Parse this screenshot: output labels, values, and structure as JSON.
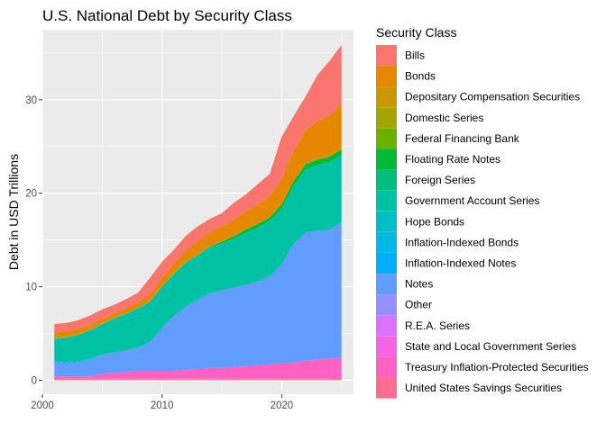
{
  "chart_data": {
    "type": "area",
    "stacked": true,
    "title": "U.S. National Debt by Security Class",
    "xlabel": "",
    "ylabel": "Debt in USD Trillions",
    "xlim": [
      2000,
      2026
    ],
    "ylim": [
      -1.5,
      37.5
    ],
    "x_ticks": [
      2000,
      2010,
      2020
    ],
    "y_ticks": [
      0,
      10,
      20,
      30
    ],
    "grid": true,
    "legend_position": "right",
    "legend_title": "Security Class",
    "x": [
      2001,
      2002,
      2003,
      2004,
      2005,
      2006,
      2007,
      2008,
      2009,
      2010,
      2011,
      2012,
      2013,
      2014,
      2015,
      2016,
      2017,
      2018,
      2019,
      2020,
      2021,
      2022,
      2023,
      2024,
      2025
    ],
    "series": [
      {
        "name": "Bills",
        "color": "#F8766D",
        "values": [
          0.9,
          0.9,
          0.9,
          1.0,
          1.0,
          0.9,
          1.0,
          1.0,
          1.8,
          1.7,
          1.5,
          1.6,
          1.6,
          1.4,
          1.4,
          1.8,
          1.8,
          2.2,
          2.4,
          4.5,
          3.7,
          3.6,
          5.0,
          5.8,
          6.3
        ]
      },
      {
        "name": "Bonds",
        "color": "#E58700",
        "values": [
          0.6,
          0.6,
          0.6,
          0.5,
          0.5,
          0.5,
          0.5,
          0.6,
          0.7,
          0.9,
          1.0,
          1.2,
          1.4,
          1.5,
          1.6,
          1.7,
          1.9,
          2.0,
          2.2,
          2.7,
          3.2,
          3.6,
          4.0,
          4.4,
          4.8
        ]
      },
      {
        "name": "Depositary Compensation Securities",
        "color": "#C99800",
        "values": [
          0,
          0,
          0,
          0,
          0,
          0,
          0,
          0,
          0,
          0,
          0,
          0,
          0,
          0,
          0,
          0,
          0,
          0,
          0,
          0,
          0,
          0,
          0,
          0,
          0
        ]
      },
      {
        "name": "Domestic Series",
        "color": "#A3A500",
        "values": [
          0.03,
          0.03,
          0.03,
          0.03,
          0.03,
          0.03,
          0.03,
          0.03,
          0.03,
          0.03,
          0.03,
          0.03,
          0.03,
          0.03,
          0.03,
          0.03,
          0.03,
          0.03,
          0.03,
          0.03,
          0.03,
          0.03,
          0.03,
          0.03,
          0.03
        ]
      },
      {
        "name": "Federal Financing Bank",
        "color": "#6BB100",
        "values": [
          0.02,
          0.02,
          0.02,
          0.02,
          0.02,
          0.02,
          0.02,
          0.02,
          0.02,
          0.02,
          0.02,
          0.02,
          0.02,
          0.02,
          0.02,
          0.02,
          0.02,
          0.02,
          0.02,
          0.02,
          0.02,
          0.02,
          0.02,
          0.02,
          0.02
        ]
      },
      {
        "name": "Floating Rate Notes",
        "color": "#00BA38",
        "values": [
          0,
          0,
          0,
          0,
          0,
          0,
          0,
          0,
          0,
          0,
          0,
          0,
          0,
          0.1,
          0.2,
          0.3,
          0.4,
          0.4,
          0.4,
          0.5,
          0.6,
          0.6,
          0.6,
          0.6,
          0.6
        ]
      },
      {
        "name": "Foreign Series",
        "color": "#00BF7D",
        "values": [
          0.02,
          0.02,
          0.02,
          0.02,
          0.02,
          0.02,
          0.02,
          0.02,
          0.02,
          0.02,
          0.02,
          0.02,
          0.02,
          0.02,
          0.02,
          0.02,
          0.02,
          0.02,
          0.02,
          0.02,
          0.02,
          0.02,
          0.02,
          0.02,
          0.02
        ]
      },
      {
        "name": "Government Account Series",
        "color": "#00C1A3",
        "values": [
          2.4,
          2.6,
          2.8,
          3.0,
          3.3,
          3.6,
          3.9,
          4.2,
          4.3,
          4.4,
          4.5,
          4.7,
          4.8,
          4.9,
          5.0,
          5.2,
          5.5,
          5.7,
          5.9,
          5.9,
          6.1,
          6.7,
          7.0,
          7.2,
          7.2
        ]
      },
      {
        "name": "Hope Bonds",
        "color": "#00BFC4",
        "values": [
          0,
          0,
          0,
          0,
          0,
          0,
          0,
          0,
          0,
          0,
          0,
          0,
          0,
          0,
          0,
          0,
          0,
          0,
          0,
          0,
          0,
          0,
          0,
          0,
          0
        ]
      },
      {
        "name": "Inflation-Indexed Bonds",
        "color": "#00B9E3",
        "values": [
          0.1,
          0.1,
          0.1,
          0.1,
          0,
          0,
          0,
          0,
          0,
          0,
          0,
          0,
          0,
          0,
          0,
          0,
          0,
          0,
          0,
          0,
          0,
          0,
          0,
          0,
          0
        ]
      },
      {
        "name": "Inflation-Indexed Notes",
        "color": "#00ADFA",
        "values": [
          0.05,
          0.05,
          0.05,
          0.05,
          0,
          0,
          0,
          0,
          0,
          0,
          0,
          0,
          0,
          0,
          0,
          0,
          0,
          0,
          0,
          0,
          0,
          0,
          0,
          0,
          0
        ]
      },
      {
        "name": "Notes",
        "color": "#619CFF",
        "values": [
          1.5,
          1.4,
          1.5,
          1.8,
          2.0,
          2.2,
          2.3,
          2.5,
          3.1,
          4.6,
          5.9,
          6.8,
          7.4,
          8.0,
          8.3,
          8.5,
          8.7,
          9.0,
          9.4,
          10.6,
          12.7,
          13.7,
          13.8,
          13.8,
          14.5
        ]
      },
      {
        "name": "Other",
        "color": "#9590FF",
        "values": [
          0,
          0,
          0,
          0,
          0,
          0,
          0,
          0,
          0,
          0,
          0,
          0,
          0,
          0,
          0,
          0,
          0,
          0,
          0,
          0,
          0,
          0,
          0,
          0,
          0
        ]
      },
      {
        "name": "R.E.A. Series",
        "color": "#DB72FB",
        "values": [
          0,
          0,
          0,
          0,
          0,
          0,
          0,
          0,
          0,
          0,
          0,
          0,
          0,
          0,
          0,
          0,
          0,
          0,
          0,
          0,
          0,
          0,
          0,
          0,
          0
        ]
      },
      {
        "name": "State and Local Government Series",
        "color": "#F564E3",
        "values": [
          0,
          0,
          0,
          0,
          0,
          0,
          0,
          0,
          0,
          0,
          0,
          0,
          0,
          0,
          0,
          0,
          0,
          0,
          0,
          0,
          0,
          0,
          0,
          0,
          0
        ]
      },
      {
        "name": "Treasury Inflation-Protected Securities",
        "color": "#FF61C3",
        "values": [
          0.2,
          0.2,
          0.2,
          0.2,
          0.5,
          0.6,
          0.7,
          0.8,
          0.8,
          0.8,
          0.8,
          0.9,
          1.0,
          1.1,
          1.1,
          1.2,
          1.3,
          1.4,
          1.5,
          1.6,
          1.7,
          1.9,
          2.0,
          2.1,
          2.2
        ]
      },
      {
        "name": "United States Savings Securities",
        "color": "#FF6C91",
        "values": [
          0.2,
          0.2,
          0.2,
          0.2,
          0.2,
          0.2,
          0.2,
          0.2,
          0.2,
          0.2,
          0.2,
          0.2,
          0.2,
          0.2,
          0.2,
          0.2,
          0.2,
          0.2,
          0.2,
          0.2,
          0.2,
          0.2,
          0.2,
          0.2,
          0.2
        ]
      }
    ]
  }
}
